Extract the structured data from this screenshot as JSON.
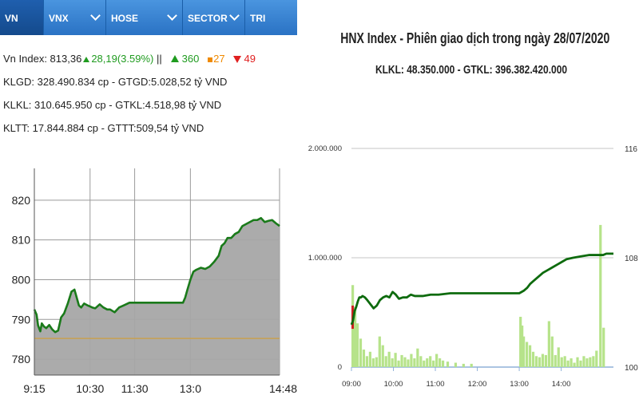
{
  "tabs": [
    {
      "label": "VN INDEX",
      "active": true,
      "dropdown": false
    },
    {
      "label": "VNX",
      "active": false,
      "dropdown": true
    },
    {
      "label": "HOSE",
      "active": false,
      "dropdown": true
    },
    {
      "label": "SECTOR",
      "active": false,
      "dropdown": true
    },
    {
      "label": "TRI",
      "active": false,
      "dropdown": false
    }
  ],
  "stats": {
    "index_label": "Vn Index: 813,36",
    "change": "28,19(3.59%)",
    "separator": "||",
    "advancers": "360",
    "unchanged": "27",
    "decliners": "49",
    "row2": "KLGD: 328.490.834 cp - GTGD:5.028,52 tỷ VND",
    "row3": "KLKL: 310.645.950 cp - GTKL:4.518,98 tỷ VND",
    "row4": "KLTT: 17.844.884 cp - GTTT:509,54 tỷ VND"
  },
  "colors": {
    "tab_bg": "#2f7fd0",
    "advance": "#1f9b1f",
    "unchanged": "#f08a00",
    "decline": "#e02020",
    "area_fill": "#a6a6a6",
    "reference_line": "#c8a050",
    "index_line": "#1a7a1a",
    "volume_bar": "#b6e38a"
  },
  "chart_data": [
    {
      "type": "area",
      "title": "",
      "xlabel": "",
      "ylabel": "",
      "ylim": [
        776,
        828
      ],
      "xlim": [
        0,
        330
      ],
      "x_ticks": [
        {
          "pos": 0,
          "label": "9:15"
        },
        {
          "pos": 75,
          "label": "10:30"
        },
        {
          "pos": 135,
          "label": "11:30"
        },
        {
          "pos": 210,
          "label": "13:0"
        },
        {
          "pos": 330,
          "label": "14:48"
        }
      ],
      "y_ticks": [
        780,
        790,
        800,
        810,
        820
      ],
      "reference_value": 785.2,
      "grid": true,
      "series": [
        {
          "x": [
            0,
            3,
            5,
            8,
            10,
            13,
            16,
            20,
            24,
            28,
            32,
            36,
            40,
            45,
            50,
            54,
            57,
            60,
            63,
            67,
            72,
            78,
            82,
            88,
            93,
            98,
            102,
            108,
            114,
            120,
            128,
            135,
            145,
            160,
            175,
            190,
            200,
            203,
            206,
            210,
            214,
            218,
            224,
            230,
            236,
            242,
            248,
            252,
            256,
            260,
            265,
            270,
            275,
            280,
            285,
            290,
            295,
            300,
            305,
            310,
            315,
            320,
            325,
            330
          ],
          "y": [
            792.5,
            791.2,
            788.5,
            787,
            789,
            788.2,
            787.8,
            788.6,
            787.5,
            786.8,
            787.2,
            790.5,
            791.5,
            794,
            797,
            797.5,
            795.5,
            793.5,
            793,
            794,
            793.5,
            793,
            792.8,
            793.8,
            793,
            792.5,
            792.5,
            791.8,
            793,
            793.5,
            794.2,
            794.2,
            794.2,
            794.2,
            794.2,
            794.2,
            794.2,
            795.5,
            797.5,
            800,
            802,
            802.5,
            803,
            802.7,
            803.3,
            804.5,
            806,
            808.5,
            809.2,
            810.5,
            810.5,
            811.5,
            812,
            813.5,
            814,
            814.5,
            815,
            815,
            815.5,
            814.5,
            814.8,
            815,
            814.2,
            813.5
          ]
        }
      ]
    },
    {
      "type": "line",
      "title": "HNX Index - Phiên giao dịch trong ngày 28/07/2020",
      "subtitle": "KLKL: 48.350.000 - GTKL: 396.382.420.000",
      "xlabel": "",
      "ylabel": "",
      "xlim": [
        0,
        331
      ],
      "x_ticks": [
        {
          "pos": 0,
          "label": "09:00"
        },
        {
          "pos": 53,
          "label": "10:00"
        },
        {
          "pos": 106,
          "label": "11:00"
        },
        {
          "pos": 159,
          "label": "12:00"
        },
        {
          "pos": 212,
          "label": "13:00"
        },
        {
          "pos": 265,
          "label": "14:00"
        }
      ],
      "volume_axis": {
        "ticks": [
          "0",
          "1.000.000",
          "2.000.000"
        ],
        "range": [
          0,
          2000000
        ]
      },
      "index_axis": {
        "ticks": [
          "100",
          "108",
          "116"
        ],
        "range": [
          100,
          116
        ]
      },
      "grid": true,
      "index_series": {
        "x": [
          0,
          2,
          4,
          6,
          8,
          10,
          12,
          14,
          17,
          20,
          24,
          28,
          32,
          36,
          40,
          44,
          48,
          52,
          56,
          60,
          65,
          70,
          75,
          80,
          90,
          100,
          110,
          125,
          140,
          160,
          180,
          200,
          212,
          218,
          222,
          226,
          230,
          236,
          242,
          248,
          254,
          260,
          266,
          272,
          280,
          290,
          300,
          310,
          318,
          322,
          331
        ],
        "y": [
          103.1,
          103.4,
          104.1,
          104.4,
          104.8,
          105.1,
          105.1,
          105.2,
          105.1,
          104.9,
          104.6,
          104.3,
          104.5,
          104.9,
          105.1,
          105.2,
          105.1,
          105.5,
          105.3,
          105.0,
          105.1,
          105.1,
          105.3,
          105.2,
          105.2,
          105.3,
          105.3,
          105.4,
          105.4,
          105.4,
          105.4,
          105.4,
          105.4,
          105.6,
          105.8,
          106.1,
          106.3,
          106.6,
          106.9,
          107.1,
          107.3,
          107.5,
          107.7,
          107.9,
          108.0,
          108.1,
          108.2,
          108.2,
          108.2,
          108.3,
          108.3
        ]
      },
      "volume_series": {
        "x": [
          0,
          3,
          6,
          10,
          14,
          18,
          22,
          26,
          30,
          34,
          38,
          42,
          46,
          50,
          54,
          58,
          62,
          66,
          70,
          74,
          78,
          82,
          86,
          90,
          94,
          98,
          102,
          106,
          110,
          114,
          120,
          130,
          140,
          150,
          212,
          214,
          216,
          220,
          224,
          228,
          232,
          236,
          240,
          244,
          248,
          252,
          256,
          260,
          264,
          268,
          272,
          276,
          280,
          284,
          288,
          292,
          296,
          300,
          304,
          308,
          313,
          317
        ],
        "y": [
          750000,
          550000,
          400000,
          260000,
          160000,
          100000,
          140000,
          80000,
          90000,
          280000,
          200000,
          100000,
          140000,
          80000,
          130000,
          60000,
          110000,
          90000,
          70000,
          120000,
          80000,
          170000,
          100000,
          60000,
          80000,
          100000,
          60000,
          120000,
          80000,
          60000,
          50000,
          40000,
          30000,
          30000,
          460000,
          380000,
          280000,
          230000,
          200000,
          140000,
          100000,
          90000,
          120000,
          110000,
          420000,
          280000,
          110000,
          180000,
          90000,
          100000,
          60000,
          80000,
          40000,
          90000,
          60000,
          100000,
          80000,
          90000,
          100000,
          150000,
          1300000,
          360000
        ]
      }
    }
  ]
}
